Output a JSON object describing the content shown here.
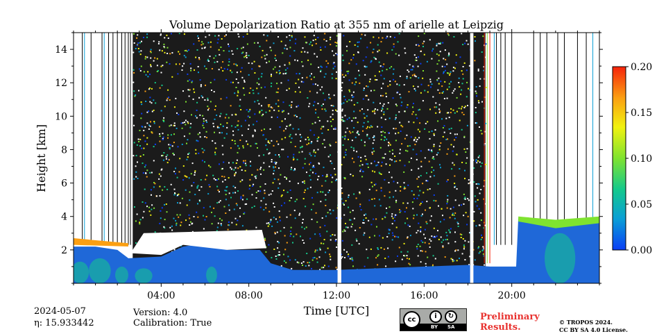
{
  "chart_data": {
    "type": "heatmap",
    "title": "Volume Depolarization Ratio at 355 nm of arielle at Leipzig",
    "xlabel": "Time [UTC]",
    "ylabel": "Height [km]",
    "x_range_hours": [
      0,
      24
    ],
    "y_range_km": [
      0,
      15
    ],
    "x_ticks": [
      {
        "value": 4,
        "label": "04:00"
      },
      {
        "value": 8,
        "label": "08:00"
      },
      {
        "value": 12,
        "label": "12:00"
      },
      {
        "value": 16,
        "label": "16:00"
      },
      {
        "value": 20,
        "label": "20:00"
      }
    ],
    "y_ticks": [
      {
        "value": 2,
        "label": "2"
      },
      {
        "value": 4,
        "label": "4"
      },
      {
        "value": 6,
        "label": "6"
      },
      {
        "value": 8,
        "label": "8"
      },
      {
        "value": 10,
        "label": "10"
      },
      {
        "value": 12,
        "label": "12"
      },
      {
        "value": 14,
        "label": "14"
      }
    ],
    "colorbar": {
      "range": [
        0.0,
        0.2
      ],
      "ticks": [
        {
          "value": 0.0,
          "label": "0.00"
        },
        {
          "value": 0.05,
          "label": "0.05"
        },
        {
          "value": 0.1,
          "label": "0.10"
        },
        {
          "value": 0.15,
          "label": "0.15"
        },
        {
          "value": 0.2,
          "label": "0.20"
        }
      ],
      "colors": [
        "#0b3ef5",
        "#0a9fd6",
        "#14c98c",
        "#7fe330",
        "#f1f20f",
        "#fb9f12",
        "#f5230b"
      ]
    },
    "data_gaps_hours": [
      [
        12.05,
        12.22
      ],
      [
        18.1,
        18.25
      ]
    ],
    "boundary_layer_top_km": [
      {
        "t": 0.0,
        "h": 2.2
      },
      {
        "t": 1.0,
        "h": 2.2
      },
      {
        "t": 2.0,
        "h": 2.0
      },
      {
        "t": 2.5,
        "h": 1.5
      },
      {
        "t": 4.0,
        "h": 1.6
      },
      {
        "t": 5.0,
        "h": 2.2
      },
      {
        "t": 6.0,
        "h": 2.4
      },
      {
        "t": 7.0,
        "h": 2.0
      },
      {
        "t": 8.5,
        "h": 2.0
      },
      {
        "t": 9.0,
        "h": 1.2
      },
      {
        "t": 10.0,
        "h": 0.8
      },
      {
        "t": 12.0,
        "h": 0.8
      },
      {
        "t": 14.0,
        "h": 0.9
      },
      {
        "t": 16.0,
        "h": 1.0
      },
      {
        "t": 18.0,
        "h": 1.1
      },
      {
        "t": 19.0,
        "h": 1.0
      },
      {
        "t": 20.2,
        "h": 1.0
      },
      {
        "t": 20.3,
        "h": 3.9
      },
      {
        "t": 22.0,
        "h": 3.5
      },
      {
        "t": 24.0,
        "h": 3.9
      }
    ],
    "noise_region_hours": [
      2.7,
      18.8
    ]
  },
  "annotations": {
    "date": "2024-05-07",
    "eta": "η: 15.933442",
    "version": "Version: 4.0",
    "calibration": "Calibration: True",
    "cc_logo": "cc",
    "cc_by": "BY",
    "cc_sa": "SA",
    "preliminary_line1": "Preliminary",
    "preliminary_line2": "Results.",
    "copyright_line1": "© TROPOS 2024.",
    "copyright_line2": "CC BY SA 4.0 License."
  }
}
